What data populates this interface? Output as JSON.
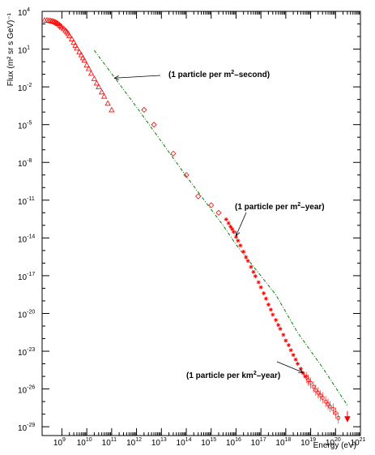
{
  "chart_data": {
    "type": "scatter",
    "title": "",
    "xlabel": "Energy (eV)",
    "ylabel": "Flux (m² sr s GeV)⁻¹",
    "x_scale": "log",
    "y_scale": "log",
    "xlim": [
      160000000.0,
      1e+21
    ],
    "ylim": [
      2e-30,
      10000.0
    ],
    "grid": false,
    "legend": "none",
    "x_ticks": [
      {
        "value": 1000000000.0,
        "base": "10",
        "exp": "9"
      },
      {
        "value": 10000000000.0,
        "base": "10",
        "exp": "10"
      },
      {
        "value": 100000000000.0,
        "base": "10",
        "exp": "11"
      },
      {
        "value": 1000000000000.0,
        "base": "10",
        "exp": "12"
      },
      {
        "value": 10000000000000.0,
        "base": "10",
        "exp": "13"
      },
      {
        "value": 100000000000000.0,
        "base": "10",
        "exp": "14"
      },
      {
        "value": 1000000000000000.0,
        "base": "10",
        "exp": "15"
      },
      {
        "value": 1e+16,
        "base": "10",
        "exp": "16"
      },
      {
        "value": 1e+17,
        "base": "10",
        "exp": "17"
      },
      {
        "value": 1e+18,
        "base": "10",
        "exp": "18"
      },
      {
        "value": 1e+19,
        "base": "10",
        "exp": "19"
      },
      {
        "value": 1e+20,
        "base": "10",
        "exp": "20"
      },
      {
        "value": 1e+21,
        "base": "10",
        "exp": "21"
      }
    ],
    "y_ticks": [
      {
        "value": 10000.0,
        "base": "10",
        "exp": "4"
      },
      {
        "value": 10.0,
        "base": "10",
        "exp": "1"
      },
      {
        "value": 0.01,
        "base": "10",
        "exp": "-2"
      },
      {
        "value": 1e-05,
        "base": "10",
        "exp": "-5"
      },
      {
        "value": 1e-08,
        "base": "10",
        "exp": "-8"
      },
      {
        "value": 1e-11,
        "base": "10",
        "exp": "-11"
      },
      {
        "value": 1e-14,
        "base": "10",
        "exp": "-14"
      },
      {
        "value": 1e-17,
        "base": "10",
        "exp": "-17"
      },
      {
        "value": 1e-20,
        "base": "10",
        "exp": "-20"
      },
      {
        "value": 1e-23,
        "base": "10",
        "exp": "-23"
      },
      {
        "value": 1e-26,
        "base": "10",
        "exp": "-26"
      },
      {
        "value": 1e-29,
        "base": "10",
        "exp": "-29"
      }
    ],
    "colors": {
      "data": "#ff0000",
      "fit": "#008000",
      "axis": "#000000"
    },
    "fit_line": {
      "x": [
        20000000000.0,
        1000000000000.0,
        100000000000000.0,
        3000000000000000.0,
        1e+16,
        4e+17,
        3e+18,
        3e+19,
        3e+20
      ],
      "y": [
        8,
        0.00025,
        8e-10,
        1e-13,
        3e-15,
        3e-19,
        3e-22,
        5e-25,
        5e-28
      ]
    },
    "series": [
      {
        "marker": "triangle",
        "x": [
          200000000.0,
          250000000.0,
          300000000.0,
          350000000.0,
          400000000.0,
          450000000.0,
          500000000.0,
          560000000.0,
          630000000.0,
          700000000.0,
          800000000.0,
          900000000.0,
          1000000000.0,
          1200000000.0,
          1400000000.0,
          1600000000.0,
          1800000000.0,
          2000000000.0,
          2500000000.0,
          3000000000.0,
          3500000000.0,
          4000000000.0,
          5000000000.0,
          6000000000.0,
          7000000000.0,
          8000000000.0,
          10000000000.0,
          12000000000.0,
          15000000000.0,
          20000000000.0,
          25000000000.0,
          30000000000.0,
          40000000000.0,
          50000000000.0,
          70000000000.0,
          100000000000.0
        ],
        "y": [
          2000,
          2000,
          1900,
          1800,
          1700,
          1600,
          1500,
          1350,
          1200,
          1050,
          850,
          700,
          550,
          420,
          310,
          230,
          170,
          120,
          65,
          35,
          20,
          12,
          6,
          3.5,
          2,
          1.3,
          0.55,
          0.28,
          0.12,
          0.045,
          0.02,
          0.01,
          0.004,
          0.0018,
          0.0005,
          0.00015
        ]
      },
      {
        "marker": "diamond",
        "x": [
          2000000000000.0,
          5000000000000.0,
          30000000000000.0,
          100000000000000.0,
          300000000000000.0,
          1000000000000000.0,
          2000000000000000.0
        ],
        "y": [
          0.00015,
          1e-05,
          5e-08,
          1e-09,
          2e-11,
          4e-12,
          1e-12
        ]
      },
      {
        "marker": "star",
        "x": [
          4000000000000000.0,
          5000000000000000.0,
          6000000000000000.0,
          7000000000000000.0,
          8000000000000000.0,
          1e+16,
          1.2e+16,
          1.5e+16,
          2e+16,
          2.5e+16,
          3e+16,
          4e+16,
          5e+16,
          6e+16,
          8e+16,
          1e+17,
          1.3e+17,
          1.6e+17,
          2e+17,
          2.5e+17,
          3e+17,
          4e+17,
          5e+17,
          6e+17,
          8e+17,
          1e+18,
          1.3e+18,
          1.6e+18,
          2e+18,
          2.5e+18,
          3e+18,
          4e+18,
          5e+18,
          6e+18
        ],
        "y": [
          3e-13,
          1.5e-13,
          8e-14,
          5e-14,
          3e-14,
          1.2e-14,
          6e-15,
          2.5e-15,
          8e-16,
          3e-16,
          1.5e-16,
          5e-17,
          2e-17,
          9e-18,
          3e-18,
          1.2e-18,
          4e-19,
          1.5e-19,
          5e-20,
          2e-20,
          8e-21,
          3e-21,
          1.2e-21,
          6e-22,
          2e-22,
          7e-23,
          3e-23,
          1.2e-23,
          5e-24,
          2.2e-24,
          1e-24,
          4e-25,
          1.8e-25,
          1e-25
        ]
      },
      {
        "marker": "circle",
        "x": [
          7e+18,
          8e+18,
          1e+19,
          1.3e+19,
          1.6e+19,
          2e+19,
          2.5e+19,
          3e+19,
          4e+19,
          5e+19,
          6e+19,
          8e+19,
          1e+20,
          1.3e+20
        ],
        "y": [
          8e-26,
          5e-26,
          3e-26,
          1.5e-26,
          8e-27,
          5e-27,
          3e-27,
          2e-27,
          1e-27,
          6e-28,
          4e-28,
          2.5e-28,
          1.2e-28,
          5e-29
        ]
      },
      {
        "marker": "arrow-down",
        "x": [
          3e+20
        ],
        "y": [
          4e-29
        ]
      }
    ],
    "annotations": [
      {
        "text_main": "(1 particle per m",
        "sup": "2",
        "text_tail": "–second)",
        "arrow_to": [
          130000000000.0,
          0.05
        ]
      },
      {
        "text_main": "(1 particle per m",
        "sup": "2",
        "text_tail": "–year)",
        "arrow_to": [
          1e+16,
          1.5e-14
        ]
      },
      {
        "text_main": "(1 particle per km",
        "sup": "2",
        "text_tail": "–year)",
        "arrow_to": [
          5e+18,
          2e-25
        ]
      }
    ]
  }
}
